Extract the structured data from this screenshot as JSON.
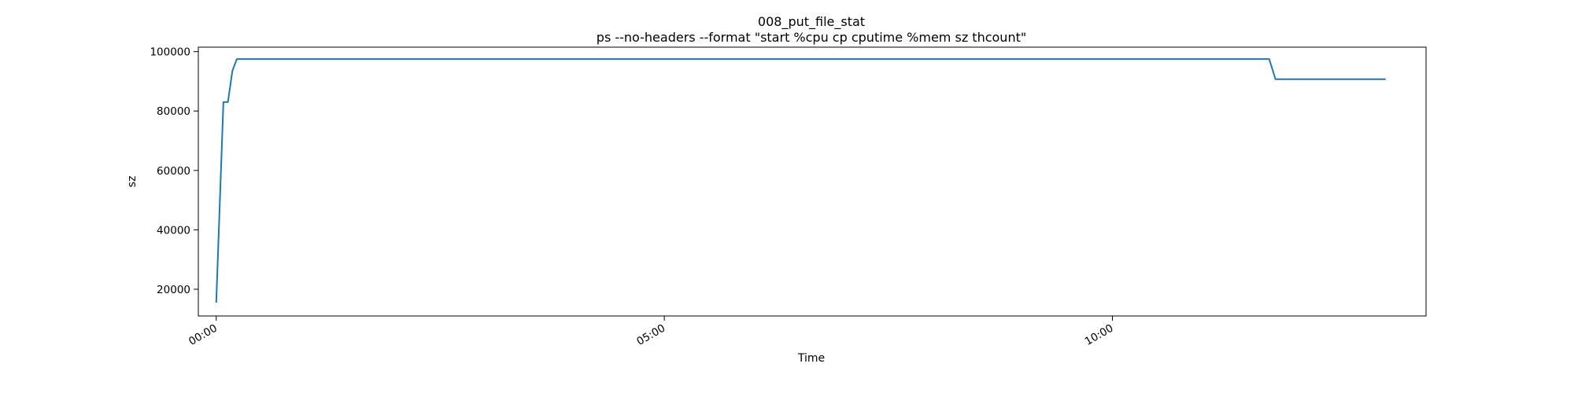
{
  "chart_data": {
    "type": "line",
    "title": "008_put_file_stat",
    "subtitle": "ps --no-headers --format \"start %cpu cp cputime %mem sz thcount\"",
    "xlabel": "Time",
    "ylabel": "sz",
    "xlim": [
      -0.2,
      13.5
    ],
    "ylim": [
      11000,
      101500
    ],
    "x_ticks": [
      {
        "value": 0,
        "label": "00:00"
      },
      {
        "value": 5,
        "label": "05:00"
      },
      {
        "value": 10,
        "label": "10:00"
      }
    ],
    "y_ticks": [
      {
        "value": 20000,
        "label": "20000"
      },
      {
        "value": 40000,
        "label": "40000"
      },
      {
        "value": 60000,
        "label": "60000"
      },
      {
        "value": 80000,
        "label": "80000"
      },
      {
        "value": 100000,
        "label": "100000"
      }
    ],
    "grid": false,
    "series": [
      {
        "color": "#1f77b4",
        "x": [
          0.0,
          0.08,
          0.13,
          0.18,
          0.23,
          11.75,
          11.82,
          13.05
        ],
        "values": [
          15500,
          83000,
          83000,
          93500,
          97500,
          97500,
          90700,
          90700
        ]
      }
    ]
  }
}
